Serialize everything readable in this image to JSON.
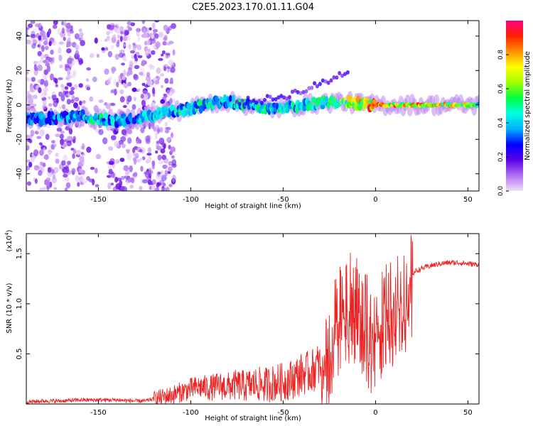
{
  "title": "C2E5.2023.170.01.11.G04",
  "chart_data": [
    {
      "type": "heatmap",
      "xlabel": "Height of straight line (km)",
      "ylabel": "Frequency (Hz)",
      "xlim": [
        -189,
        56
      ],
      "ylim": [
        -50,
        49
      ],
      "xticks": [
        -150,
        -100,
        -50,
        0,
        50
      ],
      "xtick_labels": [
        "-150",
        "-100",
        "-50",
        "0",
        "50"
      ],
      "yticks": [
        -40,
        -20,
        0,
        20,
        40
      ],
      "ytick_labels": [
        "-40",
        "-20",
        "0",
        "20",
        "40"
      ],
      "colorbar": {
        "label": "Normalized spectral amplitude",
        "range": [
          0,
          1
        ],
        "ticks": [
          0.0,
          0.2,
          0.4,
          0.6,
          0.8
        ],
        "tick_labels": [
          "0.0",
          "0.2",
          "0.4",
          "0.6",
          "0.8"
        ],
        "colormap": [
          "#f0e0f8",
          "#b070f0",
          "#5a00e8",
          "#0000ff",
          "#00b0ff",
          "#00ffe0",
          "#00ff40",
          "#a0ff00",
          "#ffff00",
          "#ff9000",
          "#ff2000",
          "#ff0080"
        ]
      },
      "ridge": {
        "x": [
          -189,
          -170,
          -160,
          -150,
          -140,
          -130,
          -120,
          -110,
          -100,
          -90,
          -80,
          -70,
          -60,
          -50,
          -40,
          -30,
          -20,
          -10,
          0,
          10,
          20,
          30,
          40,
          50,
          56
        ],
        "y": [
          -8,
          -8,
          -7,
          -8,
          -9,
          -8,
          -6,
          -4,
          -2,
          1,
          2,
          0,
          -2,
          -2,
          0,
          1,
          2,
          1,
          0,
          0,
          0,
          0,
          0,
          0,
          0
        ],
        "amplitude": [
          0.35,
          0.4,
          0.45,
          0.5,
          0.45,
          0.4,
          0.45,
          0.45,
          0.5,
          0.5,
          0.5,
          0.5,
          0.5,
          0.5,
          0.5,
          0.55,
          0.65,
          0.85,
          0.9,
          0.9,
          0.85,
          0.85,
          0.8,
          0.7,
          0.6
        ]
      },
      "grid": false
    },
    {
      "type": "line",
      "xlabel": "Height of straight line (km)",
      "ylabel": "SNR (10 * v/v)",
      "yscale_label": "(x10",
      "yscale_exp": "4",
      "xlim": [
        -189,
        56
      ],
      "ylim": [
        0,
        1.7
      ],
      "xticks": [
        -150,
        -100,
        -50,
        0,
        50
      ],
      "xtick_labels": [
        "-150",
        "-100",
        "-50",
        "0",
        "50"
      ],
      "yticks": [
        0.5,
        1.0,
        1.5
      ],
      "ytick_labels": [
        "0.5",
        "1.0",
        "1.5"
      ],
      "series": [
        {
          "color": "#ee2222",
          "x": [
            -189,
            -180,
            -170,
            -160,
            -150,
            -140,
            -130,
            -125,
            -120,
            -115,
            -110,
            -105,
            -100,
            -95,
            -90,
            -85,
            -80,
            -75,
            -70,
            -65,
            -60,
            -55,
            -50,
            -45,
            -40,
            -35,
            -30,
            -27,
            -25,
            -22,
            -20,
            -18,
            -15,
            -12,
            -10,
            -8,
            -5,
            -2,
            0,
            2,
            5,
            8,
            10,
            12,
            15,
            18,
            20,
            22,
            25,
            28,
            30,
            35,
            40,
            45,
            50,
            56
          ],
          "y": [
            0.02,
            0.03,
            0.03,
            0.04,
            0.04,
            0.04,
            0.03,
            0.03,
            0.05,
            0.07,
            0.09,
            0.12,
            0.15,
            0.17,
            0.16,
            0.18,
            0.17,
            0.19,
            0.18,
            0.2,
            0.19,
            0.21,
            0.22,
            0.25,
            0.3,
            0.32,
            0.4,
            0.55,
            0.7,
            0.85,
            1.0,
            1.05,
            1.1,
            1.15,
            1.05,
            0.95,
            0.9,
            0.8,
            0.88,
            0.95,
            1.0,
            1.05,
            1.1,
            1.15,
            1.2,
            1.28,
            1.3,
            1.33,
            1.35,
            1.37,
            1.38,
            1.4,
            1.41,
            1.41,
            1.4,
            1.39
          ]
        }
      ],
      "grid": false
    }
  ]
}
